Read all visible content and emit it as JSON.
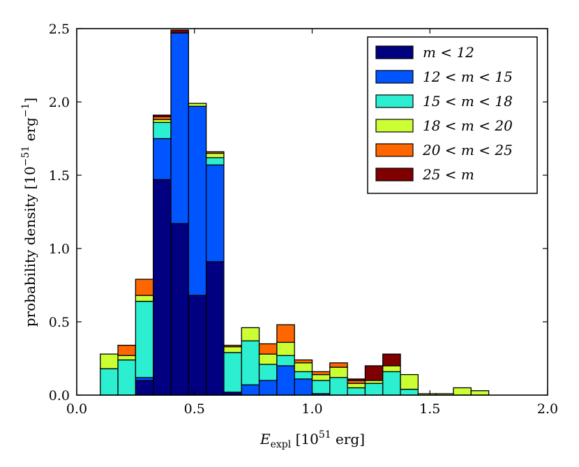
{
  "chart_data": {
    "type": "bar",
    "stacked": true,
    "title": "",
    "xlabel_main": "E",
    "xlabel_sub": "expl",
    "xlabel_rest": " [10",
    "xlabel_sup": "51",
    "xlabel_end": " erg]",
    "ylabel_main": "probability density [10",
    "ylabel_sup": "−51",
    "ylabel_mid": " erg",
    "ylabel_sup2": "−1",
    "ylabel_end": "]",
    "xlim": [
      0.0,
      2.0
    ],
    "ylim": [
      0.0,
      2.5
    ],
    "xticks": [
      0.0,
      0.5,
      1.0,
      1.5,
      2.0
    ],
    "xtick_labels": [
      "0.0",
      "0.5",
      "1.0",
      "1.5",
      "2.0"
    ],
    "yticks": [
      0.0,
      0.5,
      1.0,
      1.5,
      2.0,
      2.5
    ],
    "ytick_labels": [
      "0.0",
      "0.5",
      "1.0",
      "1.5",
      "2.0",
      "2.5"
    ],
    "bin_edges": [
      0.1,
      0.175,
      0.25,
      0.325,
      0.4,
      0.475,
      0.55,
      0.625,
      0.7,
      0.775,
      0.85,
      0.925,
      1.0,
      1.075,
      1.15,
      1.225,
      1.3,
      1.375,
      1.45,
      1.525,
      1.6,
      1.675,
      1.75,
      1.825,
      1.9
    ],
    "series": [
      {
        "name": "m < 12",
        "color": "#000080",
        "values": [
          0,
          0,
          0.1,
          1.47,
          1.17,
          0.68,
          0.91,
          0.02,
          0,
          0,
          0,
          0,
          0,
          0,
          0,
          0,
          0,
          0,
          0,
          0,
          0,
          0,
          0,
          0
        ]
      },
      {
        "name": "12 < m < 15",
        "color": "#0055ff",
        "values": [
          0,
          0,
          0.02,
          0.28,
          1.3,
          1.29,
          0.66,
          0,
          0.07,
          0.1,
          0.2,
          0.11,
          0.01,
          0,
          0,
          0,
          0,
          0,
          0,
          0,
          0,
          0,
          0,
          0
        ]
      },
      {
        "name": "15 < m < 18",
        "color": "#2befd0",
        "values": [
          0.18,
          0.24,
          0.52,
          0.11,
          0,
          0,
          0.05,
          0.27,
          0.3,
          0.11,
          0.07,
          0.05,
          0.09,
          0.12,
          0.05,
          0.08,
          0.16,
          0.04,
          0,
          0,
          0,
          0,
          0,
          0
        ]
      },
      {
        "name": "18 < m < 20",
        "color": "#ccff33",
        "values": [
          0.1,
          0.03,
          0.04,
          0.02,
          0,
          0.02,
          0.03,
          0.04,
          0.09,
          0.07,
          0.09,
          0.06,
          0.04,
          0.07,
          0.03,
          0.02,
          0.04,
          0.1,
          0.01,
          0.01,
          0.05,
          0.03,
          0,
          0
        ]
      },
      {
        "name": "20 < m < 25",
        "color": "#ff6600",
        "values": [
          0,
          0.07,
          0.11,
          0.02,
          0,
          0,
          0.01,
          0.01,
          0,
          0.07,
          0.12,
          0.02,
          0.02,
          0.03,
          0.02,
          0,
          0,
          0,
          0,
          0,
          0,
          0,
          0,
          0
        ]
      },
      {
        "name": "25 < m",
        "color": "#800000",
        "values": [
          0,
          0,
          0,
          0.01,
          0.02,
          0,
          0,
          0,
          0,
          0,
          0,
          0,
          0,
          0,
          0.01,
          0.1,
          0.08,
          0,
          0,
          0,
          0,
          0,
          0,
          0
        ]
      }
    ],
    "legend": {
      "position": "upper right",
      "entries": [
        {
          "label": "m < 12",
          "color": "#000080"
        },
        {
          "label": "12 < m < 15",
          "color": "#0055ff"
        },
        {
          "label": "15 < m < 18",
          "color": "#2befd0"
        },
        {
          "label": "18 < m < 20",
          "color": "#ccff33"
        },
        {
          "label": "20 < m < 25",
          "color": "#ff6600"
        },
        {
          "label": "25 < m",
          "color": "#800000"
        }
      ]
    }
  }
}
